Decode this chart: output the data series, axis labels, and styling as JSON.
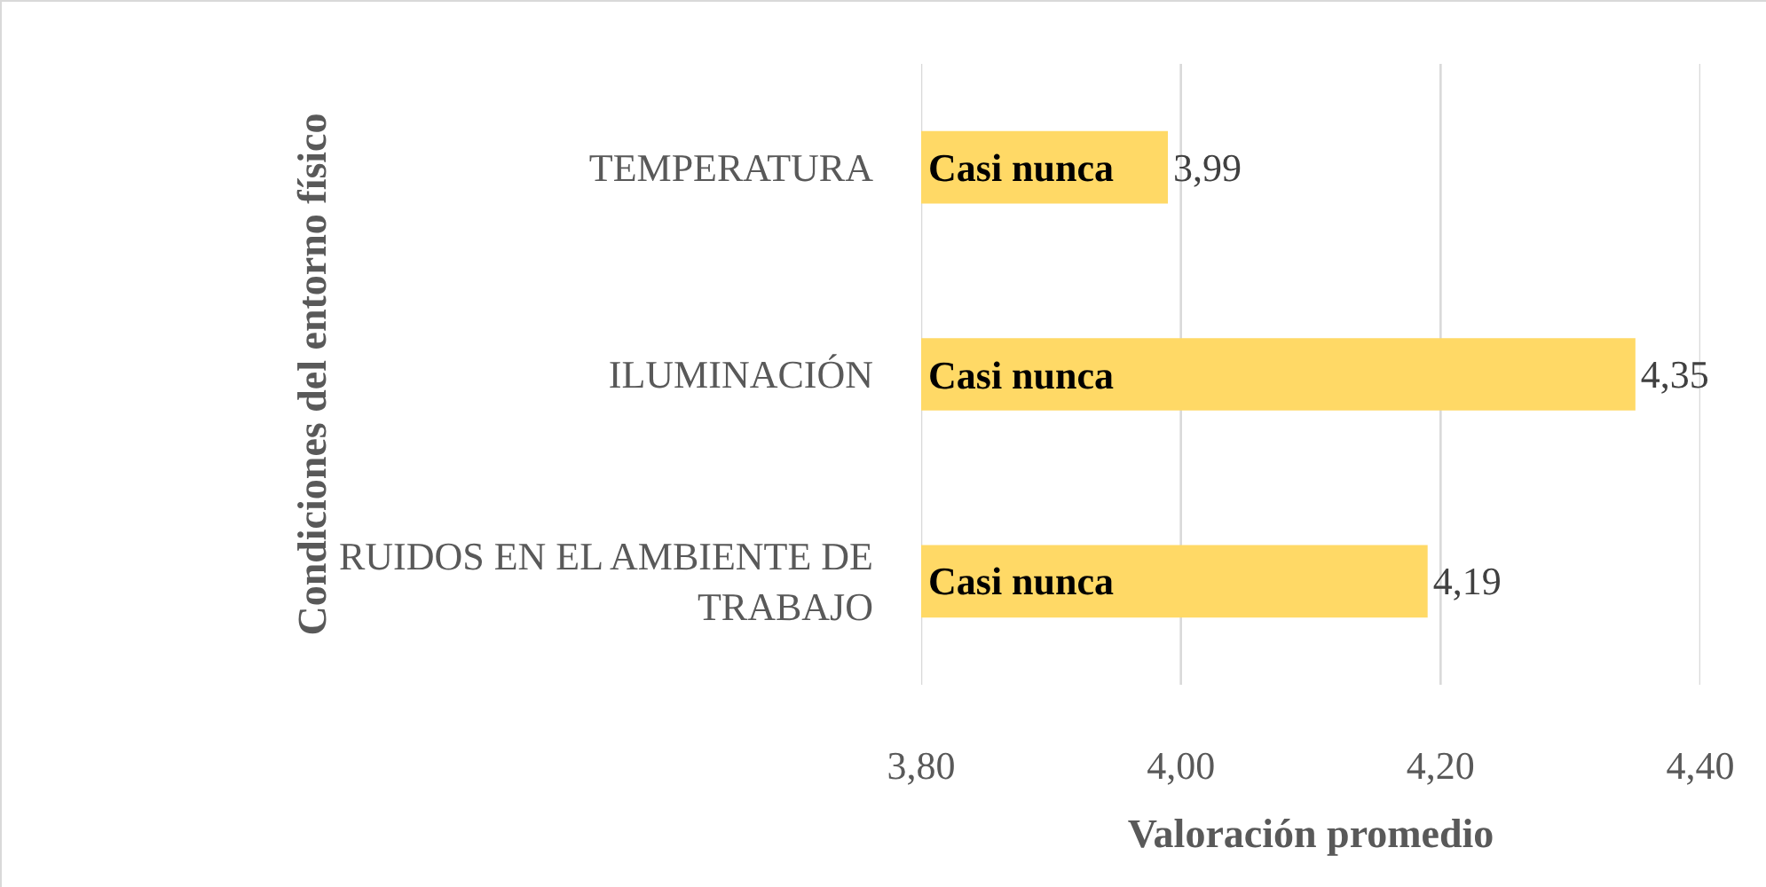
{
  "chart_data": {
    "type": "bar",
    "orientation": "horizontal",
    "xlabel": "Valoración promedio",
    "ylabel": "Condiciones del entorno físico",
    "categories": [
      "TEMPERATURA",
      "ILUMINACIÓN",
      "RUIDOS EN EL AMBIENTE DE TRABAJO"
    ],
    "values": [
      3.99,
      4.35,
      4.19
    ],
    "color": "#ffd966",
    "value_labels": [
      "3,99",
      "4,35",
      "4,19"
    ],
    "xlim": [
      3.8,
      4.4
    ],
    "xticks": [
      {
        "value": 3.8,
        "label": "3,80"
      },
      {
        "value": 4,
        "label": "4,00"
      },
      {
        "value": 4.2,
        "label": "4,20"
      },
      {
        "value": 4.4,
        "label": "4,40"
      }
    ],
    "grid": "x",
    "annotations": [
      "Casi nunca",
      "Casi nunca",
      "Casi nunca"
    ]
  }
}
